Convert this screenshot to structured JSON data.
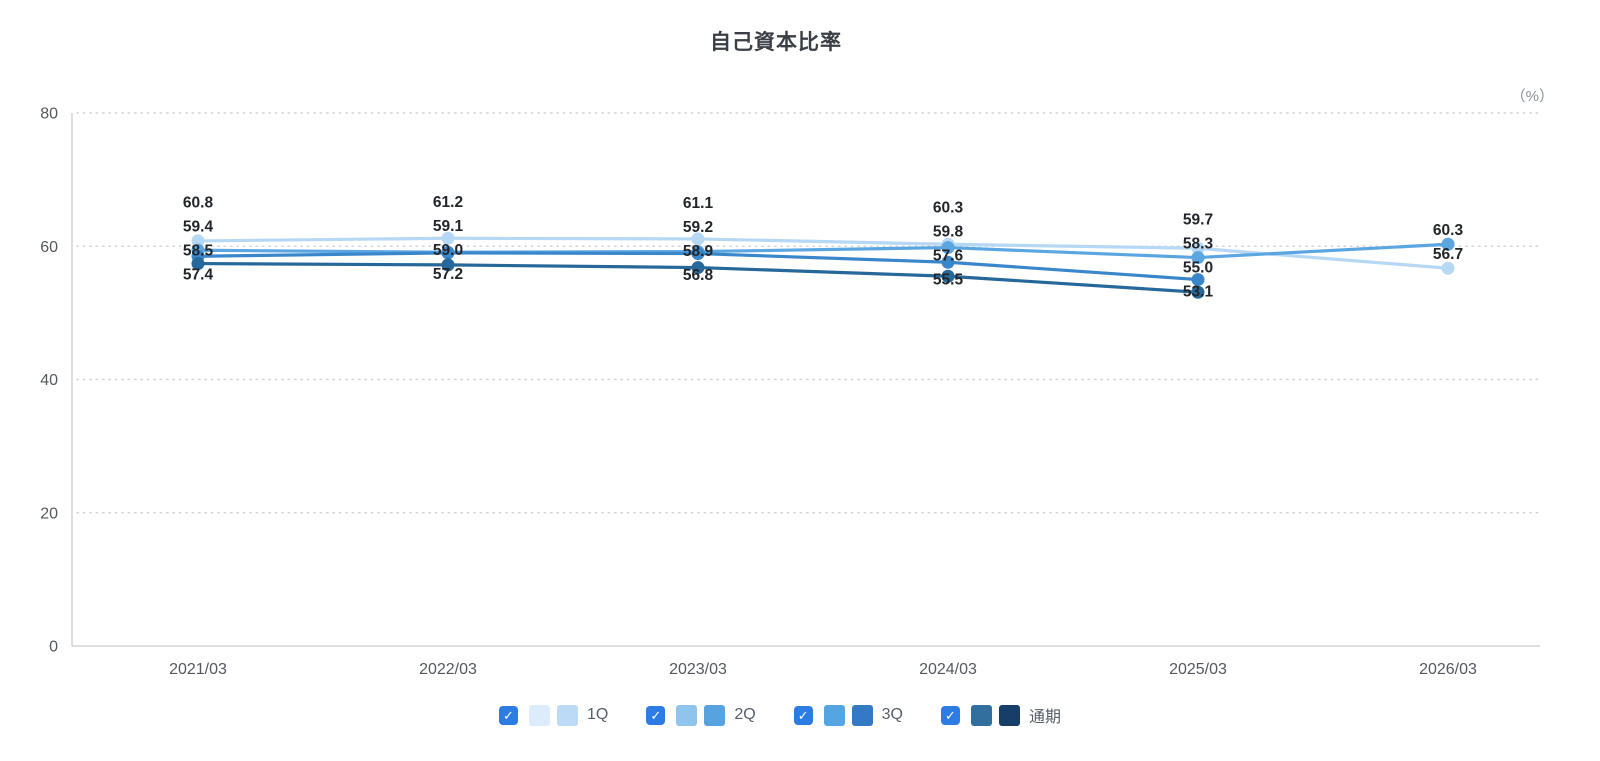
{
  "title": "自己資本比率",
  "unit_label": "（%）",
  "chart_data": {
    "type": "line",
    "title": "自己資本比率",
    "ylabel": "（%）",
    "categories": [
      "2021/03",
      "2022/03",
      "2023/03",
      "2024/03",
      "2025/03",
      "2026/03"
    ],
    "series": [
      {
        "name": "1Q",
        "values": [
          60.8,
          61.2,
          61.1,
          60.3,
          59.7,
          56.7
        ],
        "line_color": "#b7d8f4",
        "legend_colors": [
          "#dcecfa",
          "#bcd9f6"
        ],
        "checked": true
      },
      {
        "name": "2Q",
        "values": [
          59.4,
          59.1,
          59.2,
          59.8,
          58.3,
          60.3
        ],
        "line_color": "#5ba6e1",
        "legend_colors": [
          "#8fc4ed",
          "#57a3e0"
        ],
        "checked": true
      },
      {
        "name": "3Q",
        "values": [
          58.5,
          59.0,
          58.9,
          57.6,
          55.0,
          null
        ],
        "line_color": "#3a86cb",
        "legend_colors": [
          "#55a5e2",
          "#3379c4"
        ],
        "checked": true
      },
      {
        "name": "通期",
        "values": [
          57.4,
          57.2,
          56.8,
          55.5,
          53.1,
          null
        ],
        "line_color": "#26689a",
        "legend_colors": [
          "#336f9e",
          "#163e68"
        ],
        "checked": true
      }
    ],
    "y_ticks": [
      0,
      20,
      40,
      60,
      80
    ],
    "ylim": [
      0,
      80
    ],
    "grid": "dotted-horizontal",
    "legend_position": "bottom"
  },
  "colors": {
    "checkbox": "#2d7ce4",
    "checkmark": "✓",
    "axis_line": "#c9ccd0",
    "grid_line": "#d4d4d4",
    "axis_text": "#54585e",
    "data_label_text": "#22262b",
    "title_text": "#3a3f45",
    "legend_text": "#555f6a",
    "unit_text": "#8a9097"
  }
}
